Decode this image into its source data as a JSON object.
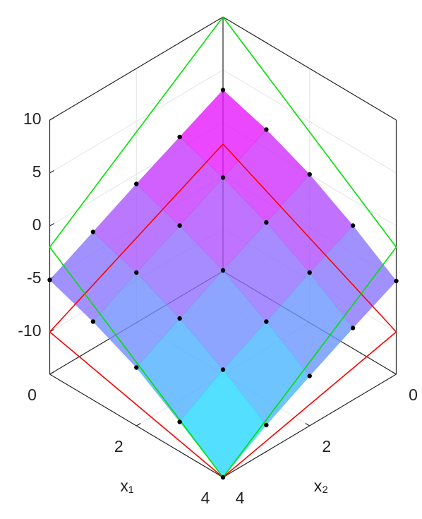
{
  "chart_data": {
    "type": "surface",
    "x1": [
      0,
      1,
      2,
      3,
      4
    ],
    "x2": [
      0,
      1,
      2,
      3,
      4
    ],
    "z": [
      [
        3.1,
        1.1,
        -0.9,
        -3,
        -5.1
      ],
      [
        1.8,
        -0.3,
        -2.4,
        -4.4,
        -6.6
      ],
      [
        0,
        -2.1,
        -4.2,
        -6.3,
        -8.5
      ],
      [
        -2.4,
        -4.4,
        -6.6,
        -8.7,
        -11.2
      ],
      [
        -5.2,
        -7.2,
        -9.3,
        -11.5,
        -14
      ]
    ],
    "colormap": "cool",
    "surface_opacity": 0.8,
    "marker_color": "#000000",
    "lines": [
      {
        "color": "#ff0000",
        "x1": [
          0,
          0,
          4,
          4,
          0
        ],
        "x2": [
          0,
          4,
          4,
          0,
          0
        ],
        "z": [
          -2,
          -10,
          -14,
          -10,
          -2
        ]
      },
      {
        "color": "#00e000",
        "x1": [
          0,
          0,
          4,
          4,
          0
        ],
        "x2": [
          0,
          4,
          4,
          0,
          0
        ],
        "z": [
          10,
          -2,
          -14,
          -2,
          10
        ]
      }
    ],
    "xlabel": "x₁",
    "ylabel": "x₂",
    "x1lim": [
      0,
      4
    ],
    "x2lim": [
      0,
      4
    ],
    "zlim": [
      -14,
      10
    ],
    "x1ticks": [
      0,
      2,
      4
    ],
    "x2ticks": [
      0,
      2,
      4
    ],
    "zticks": [
      -10,
      -5,
      0,
      5,
      10
    ],
    "grid": true
  }
}
